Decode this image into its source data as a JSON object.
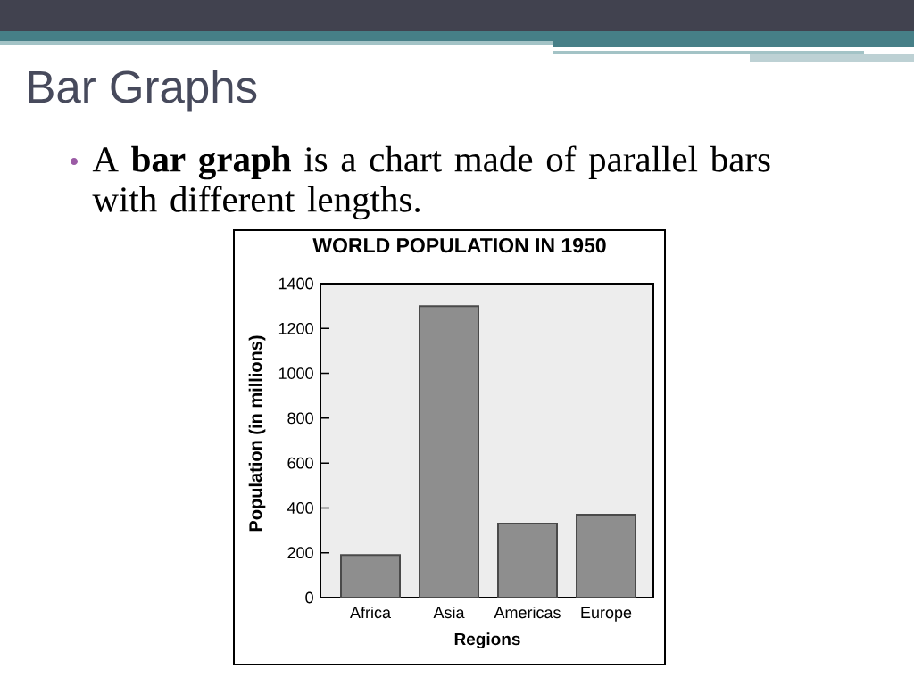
{
  "chart_data": {
    "type": "bar",
    "title": "WORLD POPULATION IN 1950",
    "xlabel": "Regions",
    "ylabel": "Population (in millions)",
    "categories": [
      "Africa",
      "Asia",
      "Americas",
      "Europe"
    ],
    "values": [
      190,
      1300,
      330,
      370
    ],
    "color": "#8e8e8e",
    "ylim": [
      0,
      1400
    ],
    "yticks": [
      0,
      200,
      400,
      600,
      800,
      1000,
      1200,
      1400
    ],
    "annotations": [
      "Bar Graphs",
      "A **bar graph** is a chart made of parallel bars with different lengths."
    ]
  }
}
